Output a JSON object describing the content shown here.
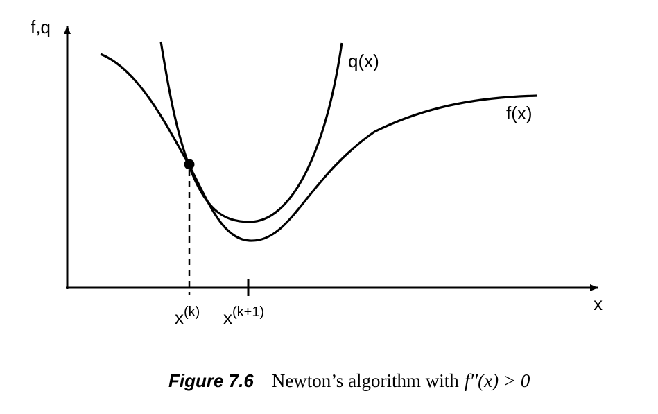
{
  "axes": {
    "y_label": "f,q",
    "x_label": "x"
  },
  "curves": [
    {
      "label": "q(x)"
    },
    {
      "label": "f(x)"
    }
  ],
  "ticks": [
    {
      "base": "x",
      "superscript": "(k)"
    },
    {
      "base": "x",
      "superscript": "(k+1)"
    }
  ],
  "caption": {
    "number": "Figure 7.6",
    "text": "Newton’s algorithm with",
    "math": "f′′(x) > 0"
  }
}
